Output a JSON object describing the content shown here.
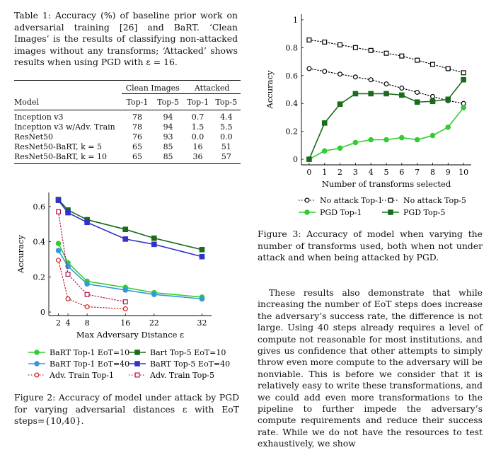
{
  "table1": {
    "caption": "Table 1: Accuracy (%) of baseline prior work on adversarial training [26] and BaRT. ‘Clean Images’ is the results of classifying non-attacked images without any transforms; ‘Attacked’ shows results when using PGD with ε = 16.",
    "groups": [
      "Clean Images",
      "Attacked"
    ],
    "headers": [
      "Model",
      "Top-1",
      "Top-5",
      "Top-1",
      "Top-5"
    ],
    "rows": [
      [
        "Inception v3",
        "78",
        "94",
        "0.7",
        "4.4"
      ],
      [
        "Inception v3 w/Adv. Train",
        "78",
        "94",
        "1.5",
        "5.5"
      ],
      [
        "ResNet50",
        "76",
        "93",
        "0.0",
        "0.0"
      ],
      [
        "ResNet50-BaRT, k = 5",
        "65",
        "85",
        "16",
        "51"
      ],
      [
        "ResNet50-BaRT, k = 10",
        "65",
        "85",
        "36",
        "57"
      ]
    ]
  },
  "figure2": {
    "caption": "Figure 2: Accuracy of model under attack by PGD for varying adversarial distances ε with EoT steps={10,40}.",
    "chart_data": {
      "type": "line",
      "xlabel": "Max Adversary Distance ε",
      "ylabel": "Accuracy",
      "x_ticks": [
        2,
        4,
        8,
        16,
        22,
        32
      ],
      "y_ticks": [
        "0",
        "0.2",
        "0.4",
        "0.6"
      ],
      "ylim": [
        -0.02,
        0.68
      ],
      "xlim": [
        0,
        34
      ],
      "legend_placement": "bottom",
      "series": [
        {
          "name": "BaRT Top-1 EoT=10",
          "color": "#33cc33",
          "marker": "circle",
          "dotted": false,
          "x": [
            2,
            4,
            8,
            16,
            22,
            32
          ],
          "y": [
            0.39,
            0.28,
            0.175,
            0.14,
            0.11,
            0.085
          ]
        },
        {
          "name": "Bart Top-5 EoT=10",
          "color": "#1a6b1a",
          "marker": "square",
          "dotted": false,
          "x": [
            2,
            4,
            8,
            16,
            22,
            32
          ],
          "y": [
            0.64,
            0.58,
            0.525,
            0.47,
            0.42,
            0.355
          ]
        },
        {
          "name": "BaRT Top-1 EoT=40",
          "color": "#3399dd",
          "marker": "circle",
          "dotted": false,
          "x": [
            2,
            4,
            8,
            16,
            22,
            32
          ],
          "y": [
            0.35,
            0.26,
            0.16,
            0.125,
            0.1,
            0.075
          ]
        },
        {
          "name": "BaRT Top-5 EoT=40",
          "color": "#3333cc",
          "marker": "square",
          "dotted": false,
          "x": [
            2,
            4,
            8,
            16,
            22,
            32
          ],
          "y": [
            0.635,
            0.565,
            0.51,
            0.415,
            0.385,
            0.315
          ]
        },
        {
          "name": "Adv. Train Top-1",
          "color": "#d11515",
          "marker": "circle-open",
          "dotted": true,
          "x": [
            2,
            4,
            8,
            16
          ],
          "y": [
            0.295,
            0.075,
            0.03,
            0.018
          ]
        },
        {
          "name": "Adv. Train Top-5",
          "color": "#b0104d",
          "marker": "square-open",
          "dotted": true,
          "x": [
            2,
            4,
            8,
            16
          ],
          "y": [
            0.57,
            0.215,
            0.1,
            0.058
          ]
        }
      ]
    }
  },
  "figure3": {
    "caption": "Figure 3: Accuracy of model when varying the number of transforms used, both when not under attack and when being attacked by PGD.",
    "chart_data": {
      "type": "line",
      "xlabel": "Number of transforms selected",
      "ylabel": "Accuracy",
      "x_ticks": [
        0,
        1,
        2,
        3,
        4,
        5,
        6,
        7,
        8,
        9,
        10
      ],
      "y_ticks": [
        "0",
        "0.2",
        "0.4",
        "0.6",
        "0.8",
        "1"
      ],
      "ylim": [
        -0.04,
        1.04
      ],
      "xlim": [
        -0.5,
        10.5
      ],
      "legend_placement": "bottom",
      "series": [
        {
          "name": "No attack Top-1",
          "color": "#000000",
          "marker": "circle-open",
          "dotted": true,
          "x": [
            0,
            1,
            2,
            3,
            4,
            5,
            6,
            7,
            8,
            9,
            10
          ],
          "y": [
            0.65,
            0.63,
            0.61,
            0.59,
            0.57,
            0.54,
            0.51,
            0.48,
            0.45,
            0.42,
            0.4
          ]
        },
        {
          "name": "No attack Top-5",
          "color": "#000000",
          "marker": "square-open",
          "dotted": true,
          "x": [
            0,
            1,
            2,
            3,
            4,
            5,
            6,
            7,
            8,
            9,
            10
          ],
          "y": [
            0.855,
            0.84,
            0.82,
            0.8,
            0.78,
            0.76,
            0.74,
            0.71,
            0.68,
            0.65,
            0.62
          ]
        },
        {
          "name": "PGD Top-1",
          "color": "#33cc33",
          "marker": "circle",
          "dotted": false,
          "x": [
            0,
            1,
            2,
            3,
            4,
            5,
            6,
            7,
            8,
            9,
            10
          ],
          "y": [
            0.0,
            0.06,
            0.08,
            0.12,
            0.14,
            0.14,
            0.155,
            0.14,
            0.17,
            0.23,
            0.37
          ]
        },
        {
          "name": "PGD Top-5",
          "color": "#1a6b1a",
          "marker": "square",
          "dotted": false,
          "x": [
            0,
            1,
            2,
            3,
            4,
            5,
            6,
            7,
            8,
            9,
            10
          ],
          "y": [
            0.0,
            0.26,
            0.395,
            0.47,
            0.47,
            0.47,
            0.46,
            0.41,
            0.415,
            0.43,
            0.57
          ]
        }
      ]
    }
  },
  "body_text": "These results also demonstrate that while increasing the number of EoT steps does increase the adversary’s success rate, the difference is not large. Using 40 steps already requires a level of compute not reasonable for most institutions, and gives us confidence that other attempts to simply throw even more compute to the adversary will be nonviable. This is before we consider that it is relatively easy to write these transformations, and we could add even more transformations to the pipeline to further impede the adversary’s compute requirements and reduce their success rate. While we do not have the resources to test exhaustively, we show"
}
